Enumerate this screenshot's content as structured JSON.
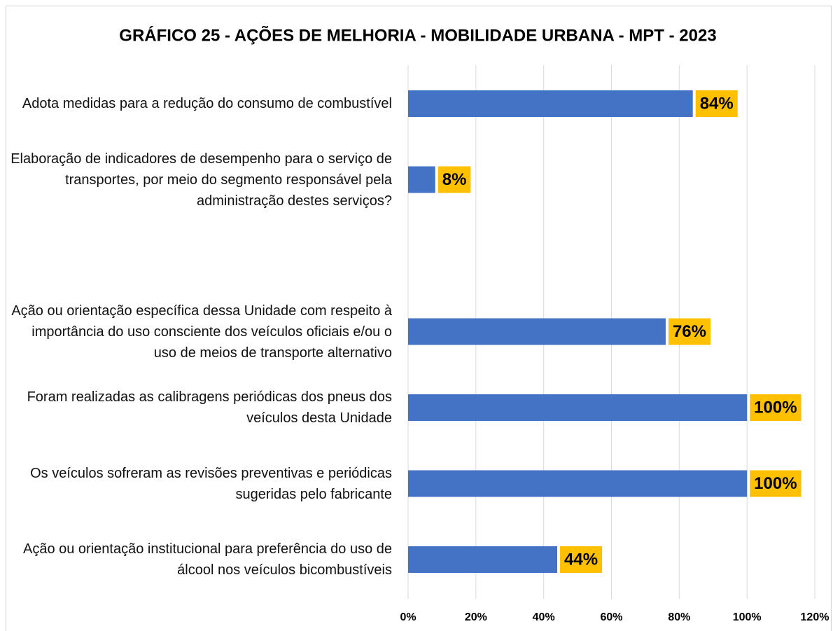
{
  "chart_data": {
    "type": "bar",
    "orientation": "horizontal",
    "title": "GRÁFICO 25 - AÇÕES DE MELHORIA - MOBILIDADE URBANA - MPT - 2023",
    "categories": [
      "Adota medidas para a redução do consumo de combustível",
      "Elaboração de indicadores de desempenho para o serviço de transportes, por meio do segmento responsável pela administração destes serviços?",
      null,
      "Ação ou orientação específica dessa Unidade com respeito à importância do uso consciente dos veículos oficiais e/ou o uso de  meios de transporte alternativo",
      "Foram realizadas as calibragens periódicas dos pneus dos veículos desta Unidade",
      "Os veículos sofreram as revisões preventivas e periódicas sugeridas pelo fabricante",
      "Ação ou orientação institucional para preferência do uso de álcool nos veículos bicombustíveis"
    ],
    "values": [
      84,
      8,
      null,
      76,
      100,
      100,
      44
    ],
    "value_labels": [
      "84%",
      "8%",
      null,
      "76%",
      "100%",
      "100%",
      "44%"
    ],
    "color": "#4472c4",
    "label_color": "#ffc000",
    "xlim": [
      0,
      120
    ],
    "xticks": [
      {
        "value": 0,
        "label": "0%"
      },
      {
        "value": 20,
        "label": "20%"
      },
      {
        "value": 40,
        "label": "40%"
      },
      {
        "value": 60,
        "label": "60%"
      },
      {
        "value": 80,
        "label": "80%"
      },
      {
        "value": 100,
        "label": "100%"
      },
      {
        "value": 120,
        "label": "120%"
      }
    ],
    "grid": true
  }
}
